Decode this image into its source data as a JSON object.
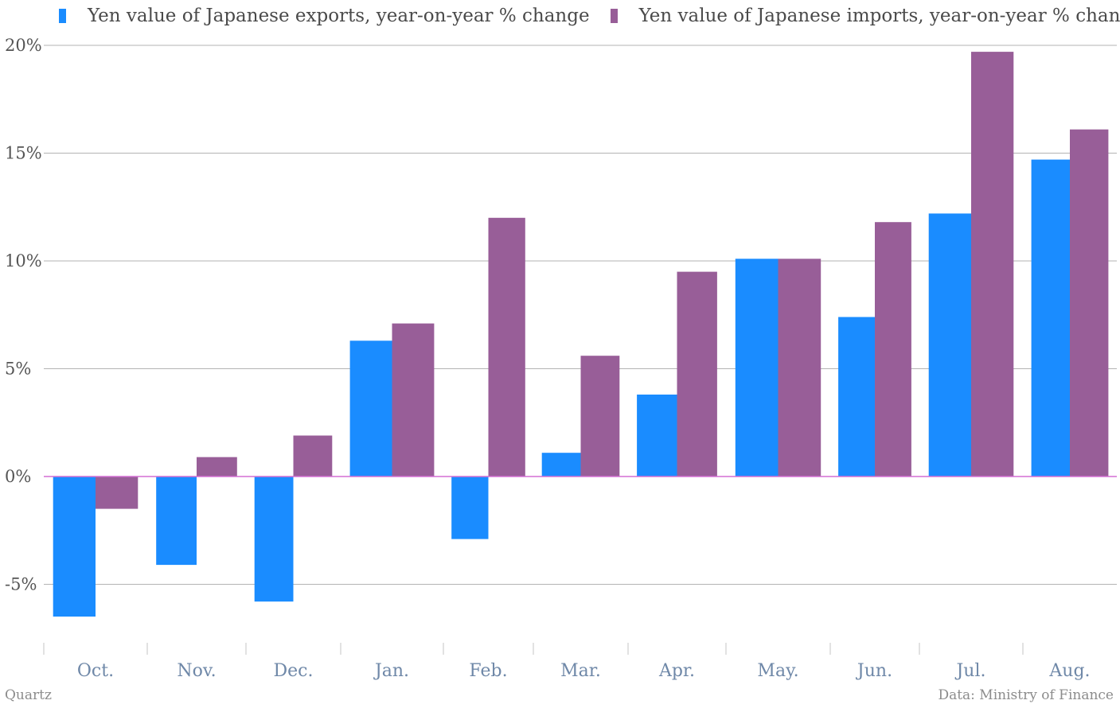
{
  "chart_data": {
    "type": "bar",
    "categories": [
      "Oct.",
      "Nov.",
      "Dec.",
      "Jan.",
      "Feb.",
      "Mar.",
      "Apr.",
      "May.",
      "Jun.",
      "Jul.",
      "Aug."
    ],
    "series": [
      {
        "name": "Yen value of Japanese exports, year-on-year % change",
        "color": "#1a8cff",
        "values": [
          -6.5,
          -4.1,
          -5.8,
          6.3,
          -2.9,
          1.1,
          3.8,
          10.1,
          7.4,
          12.2,
          14.7
        ]
      },
      {
        "name": "Yen value of Japanese imports, year-on-year % change",
        "color": "#985e98",
        "values": [
          -1.5,
          0.9,
          1.9,
          7.1,
          12.0,
          5.6,
          9.5,
          10.1,
          11.8,
          19.7,
          16.1
        ]
      }
    ],
    "yticks": [
      -5,
      0,
      5,
      10,
      15,
      20
    ],
    "ytick_labels": [
      "-5%",
      "0%",
      "5%",
      "10%",
      "15%",
      "20%"
    ],
    "ylim": [
      -7.5,
      21
    ],
    "grid": true,
    "legend": "top-left"
  },
  "footer": {
    "left": "Quartz",
    "right": "Data: Ministry of Finance"
  }
}
